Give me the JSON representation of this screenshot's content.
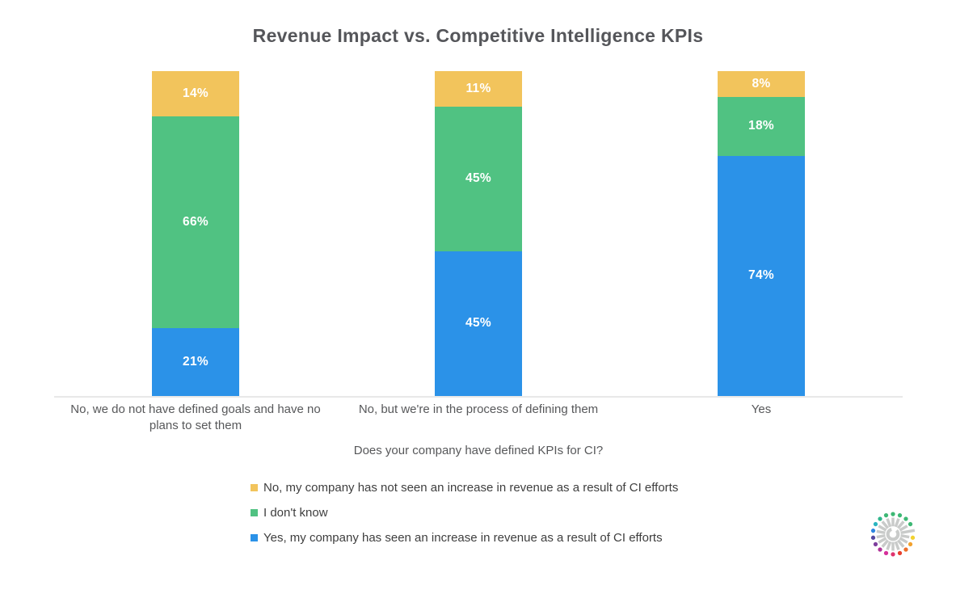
{
  "chart_data": {
    "type": "bar",
    "stacked": true,
    "title": "Revenue Impact vs. Competitive Intelligence KPIs",
    "xlabel": "Does your company have defined KPIs for CI?",
    "value_suffix": "%",
    "ylim": [
      0,
      100
    ],
    "grid": false,
    "legend_position": "bottom-left",
    "categories": [
      "No, we do not have defined goals and have no plans to set them",
      "No, but we're in the process of defining them",
      "Yes"
    ],
    "series": [
      {
        "name": "No, my company has not seen an increase in revenue as a result of CI efforts",
        "color": "#F2C45C",
        "values": [
          14,
          11,
          8
        ]
      },
      {
        "name": "I don't know",
        "color": "#50C282",
        "values": [
          66,
          45,
          18
        ]
      },
      {
        "name": "Yes, my company has seen an increase in revenue as a result of CI efforts",
        "color": "#2B92E8",
        "values": [
          21,
          45,
          74
        ]
      }
    ]
  },
  "logo": {
    "name": "crayon-burst-logo",
    "ray_color": "#c9cbca",
    "dot_colors": [
      "#3DB874",
      "#3DB874",
      "#3DB874",
      "#3DB874",
      null,
      "#F2D230",
      "#F2A12E",
      "#ED6F2A",
      "#E8402F",
      "#E0336E",
      "#D6309B",
      "#B03498",
      "#7E3F9D",
      "#55489F",
      "#2E86E0",
      "#2AB5C0",
      "#31B68C",
      "#3DB874"
    ]
  }
}
